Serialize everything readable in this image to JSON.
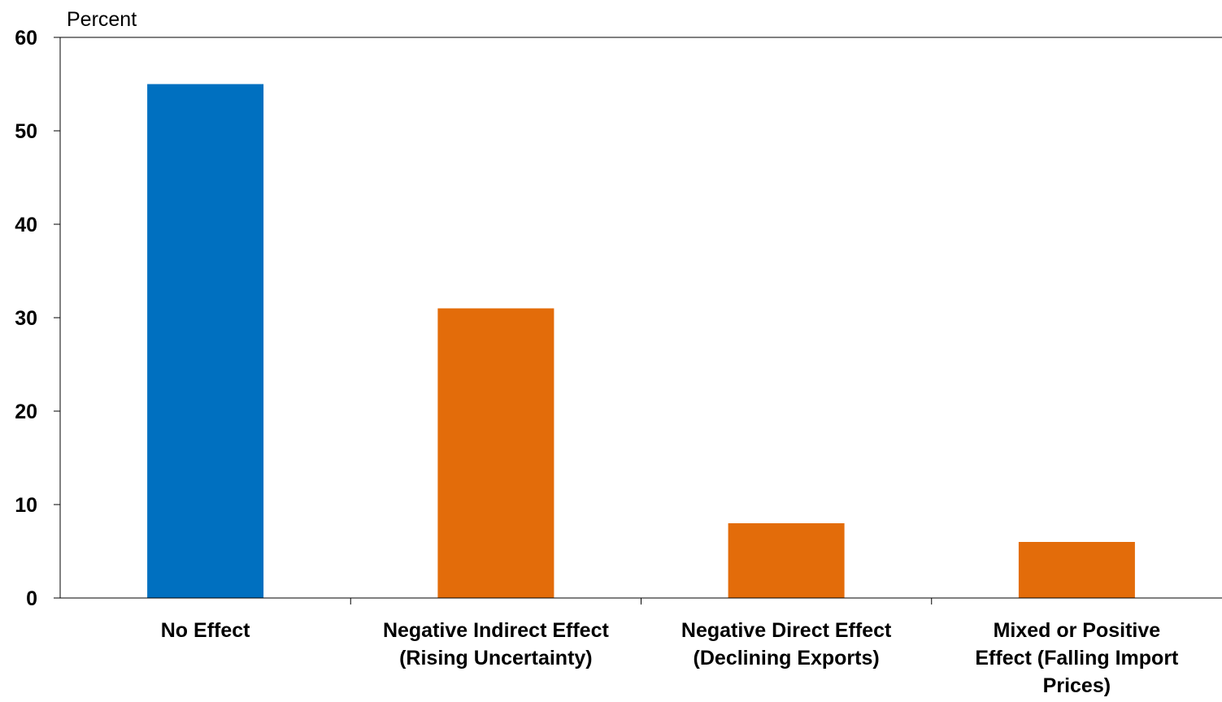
{
  "chart_data": {
    "type": "bar",
    "ylabel": "Percent",
    "ylim": [
      0,
      60
    ],
    "yticks": [
      0,
      10,
      20,
      30,
      40,
      50,
      60
    ],
    "categories": [
      [
        "No Effect"
      ],
      [
        "Negative Indirect Effect",
        "(Rising Uncertainty)"
      ],
      [
        "Negative Direct Effect",
        "(Declining Exports)"
      ],
      [
        "Mixed or Positive",
        "Effect (Falling Import",
        "Prices)"
      ]
    ],
    "values": [
      55,
      31,
      8,
      6
    ],
    "colors": [
      "#0070C0",
      "#E36C0A",
      "#E36C0A",
      "#E36C0A"
    ],
    "grid": false,
    "legend": "none"
  }
}
